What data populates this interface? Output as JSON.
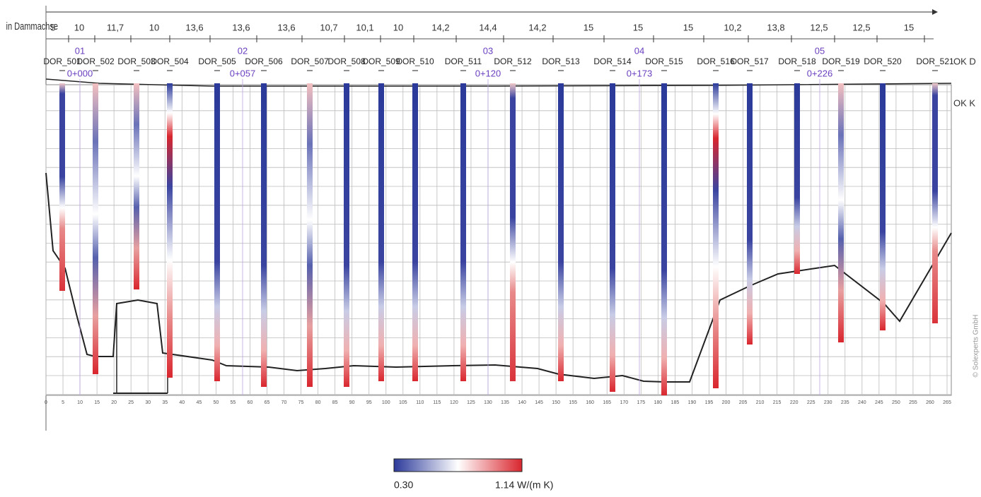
{
  "header": {
    "axis_label": "in Dammachse",
    "spacings": [
      "5",
      "10",
      "11,7",
      "10",
      "13,6",
      "13,6",
      "13,6",
      "10,7",
      "10,1",
      "10",
      "14,2",
      "14,4",
      "14,2",
      "15",
      "15",
      "15",
      "10,2",
      "13,8",
      "12,5",
      "12,5",
      "15"
    ]
  },
  "boreholes": [
    "DOR_501",
    "DOR_502",
    "DOR_503",
    "DOR_504",
    "DOR_505",
    "DOR_506",
    "DOR_507",
    "DOR_508",
    "DOR_509",
    "DOR_510",
    "DOR_511",
    "DOR_512",
    "DOR_513",
    "DOR_514",
    "DOR_515",
    "DOR_516",
    "DOR_517",
    "DOR_518",
    "DOR_519",
    "DOR_520",
    "DOR_521"
  ],
  "markers": [
    {
      "id": "01",
      "station": "0+000"
    },
    {
      "id": "02",
      "station": "0+057"
    },
    {
      "id": "03",
      "station": "0+120"
    },
    {
      "id": "04",
      "station": "0+173"
    },
    {
      "id": "05",
      "station": "0+226"
    }
  ],
  "right_labels": [
    "OK D",
    "OK K"
  ],
  "x_axis_ticks": [
    0,
    5,
    10,
    15,
    20,
    25,
    30,
    35,
    40,
    45,
    50,
    55,
    60,
    65,
    70,
    75,
    80,
    85,
    90,
    95,
    100,
    105,
    110,
    115,
    120,
    125,
    130,
    135,
    140,
    145,
    150,
    155,
    160,
    165,
    170,
    175,
    180,
    185,
    190,
    195,
    200,
    205,
    210,
    215,
    220,
    225,
    230,
    235,
    240,
    245,
    250,
    255,
    260,
    265
  ],
  "colorbar": {
    "min_label": "0.30",
    "max_label": "1.14 W/(m K)"
  },
  "copyright": "© Solexperts GmbH"
}
